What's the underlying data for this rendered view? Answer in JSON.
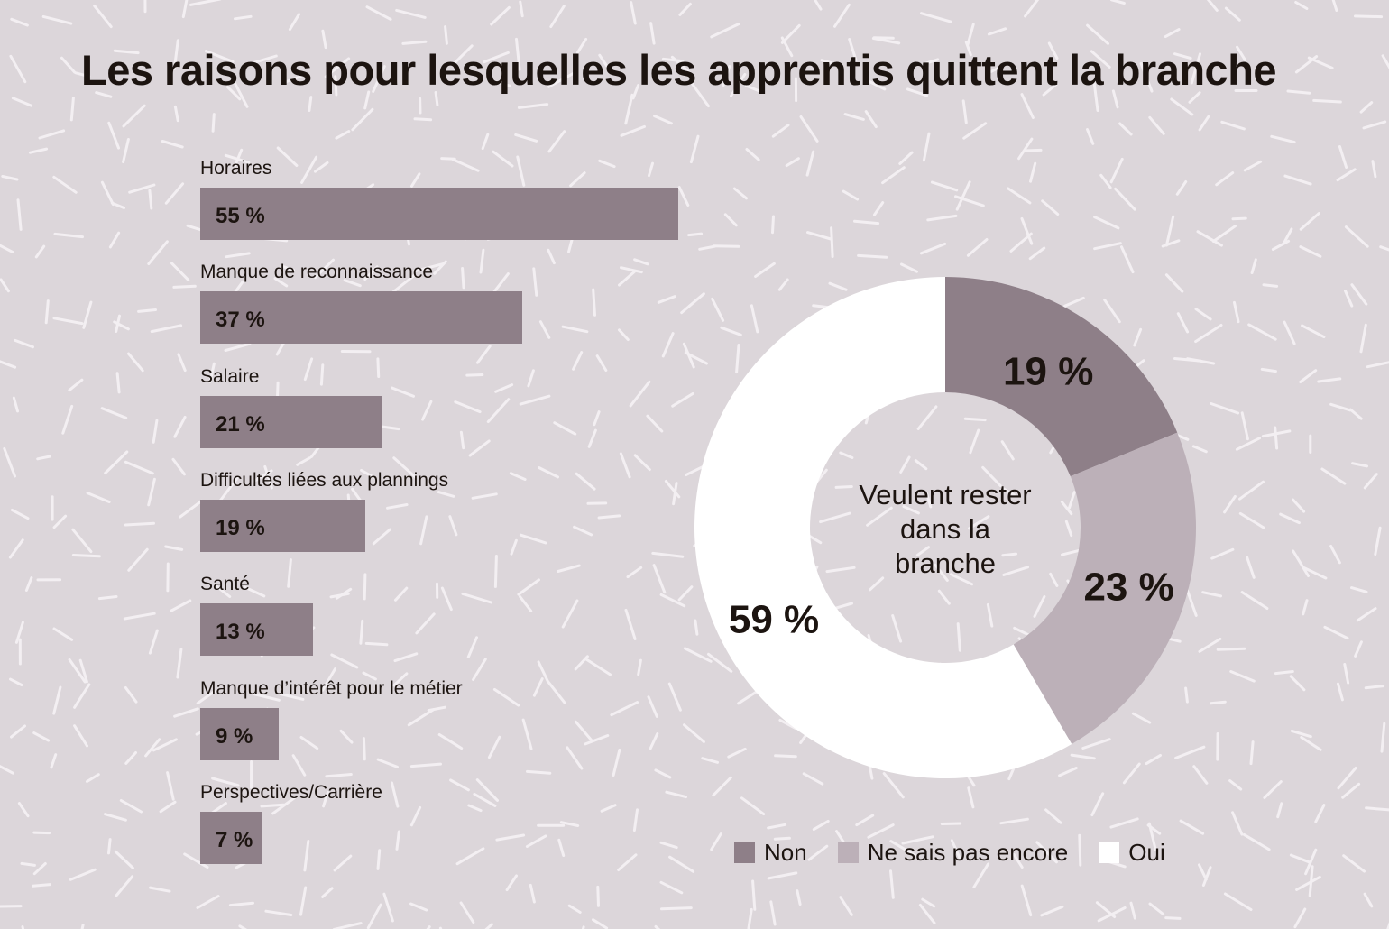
{
  "title": "Les raisons pour lesquelles les apprentis quittent la branche",
  "colors": {
    "background": "#dcd6da",
    "pattern": "#f3eff2",
    "bar": "#8e7f88",
    "non": "#8e7f88",
    "ne_sais_pas": "#bcb0b8",
    "oui": "#ffffff"
  },
  "chart_data": [
    {
      "type": "bar",
      "orientation": "horizontal",
      "title": "",
      "categories": [
        "Horaires",
        "Manque de reconnaissance",
        "Salaire",
        "Difficultés liées aux plannings",
        "Santé",
        "Manque d’intérêt pour le métier",
        "Perspectives/Carrière"
      ],
      "values": [
        55,
        37,
        21,
        19,
        13,
        9,
        7
      ],
      "value_labels": [
        "55 %",
        "37 %",
        "21 %",
        "19 %",
        "13 %",
        "9 %",
        "7 %"
      ],
      "unit": "%"
    },
    {
      "type": "pie",
      "variant": "donut",
      "center_label": "Veulent rester dans la branche",
      "slices": [
        {
          "name": "Non",
          "value": 19,
          "label": "19 %",
          "color": "#8e7f88"
        },
        {
          "name": "Ne sais pas encore",
          "value": 23,
          "label": "23 %",
          "color": "#bcb0b8"
        },
        {
          "name": "Oui",
          "value": 59,
          "label": "59 %",
          "color": "#ffffff"
        }
      ],
      "legend": {
        "placement": "bottom",
        "items": [
          "Non",
          "Ne sais pas encore",
          "Oui"
        ]
      }
    }
  ]
}
